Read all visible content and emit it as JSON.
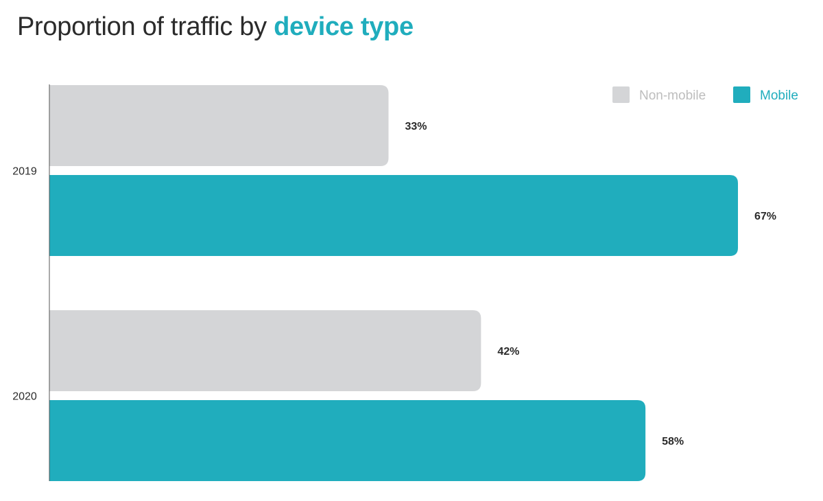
{
  "title": {
    "prefix": "Proportion of traffic by ",
    "highlight": "device type"
  },
  "colors": {
    "non_mobile": "#d4d5d7",
    "mobile": "#20adbd",
    "axis": "#555555",
    "label": "#2b2b2b",
    "legend_non_mobile_text": "#bdbdbd",
    "legend_mobile_text": "#20adbd"
  },
  "chart_data": {
    "type": "bar",
    "orientation": "horizontal",
    "categories": [
      "2019",
      "2020"
    ],
    "series": [
      {
        "name": "Non-mobile",
        "values": [
          33,
          42
        ],
        "color": "#d4d5d7"
      },
      {
        "name": "Mobile",
        "values": [
          67,
          58
        ],
        "color": "#20adbd"
      }
    ],
    "value_labels": [
      [
        "33%",
        "42%"
      ],
      [
        "67%",
        "58%"
      ]
    ],
    "xlim": [
      0,
      67
    ],
    "grid": false,
    "legend_position": "top-right",
    "xlabel": "",
    "ylabel": ""
  }
}
